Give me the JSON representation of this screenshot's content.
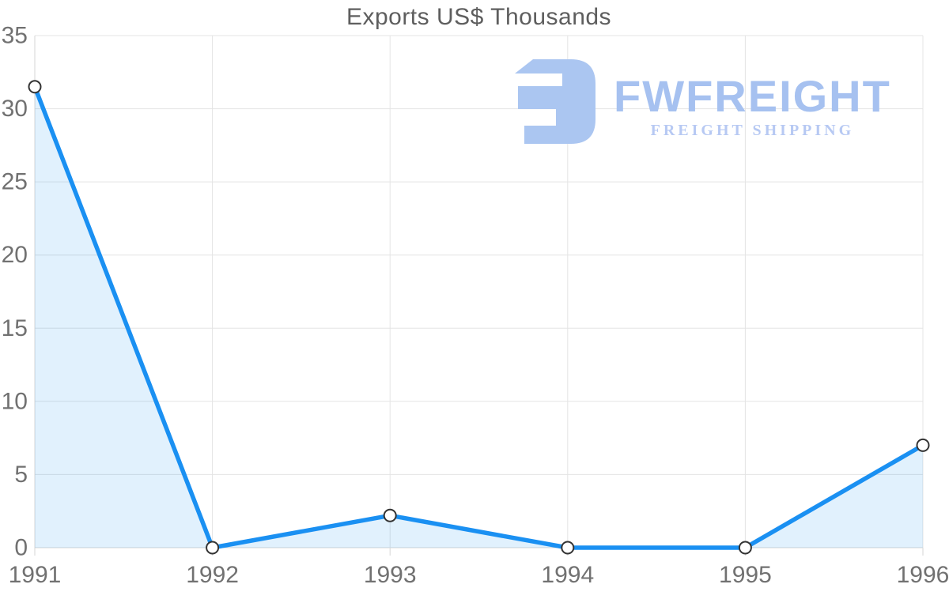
{
  "title": "Exports US$ Thousands",
  "watermark": {
    "wordmark": "FWFREIGHT",
    "tagline": "FREIGHT SHIPPING",
    "icon": "fwfreight-logo-icon",
    "wordmark_color": "#a6c1f0",
    "tagline_color": "#b7c9f3",
    "icon_color": "#abc6f1"
  },
  "chart_data": {
    "type": "area",
    "title": "Exports US$ Thousands",
    "categories": [
      "1991",
      "1992",
      "1993",
      "1994",
      "1995",
      "1996"
    ],
    "series": [
      {
        "name": "Exports US$ Thousands",
        "values": [
          31.5,
          0,
          2.2,
          0,
          0,
          7
        ]
      }
    ],
    "xlabel": "",
    "ylabel": "",
    "ylim": [
      0,
      35
    ],
    "yticks": [
      0,
      5,
      10,
      15,
      20,
      25,
      30,
      35
    ],
    "grid": true,
    "legend": false,
    "colors": {
      "line": "#1a90f2",
      "area_fill": "rgba(26,144,242,0.13)",
      "marker_fill": "#ffffff",
      "marker_stroke": "#333333",
      "gridline": "#e4e4e4",
      "axis_line": "#d6d6d6",
      "tick_label": "#717171",
      "title": "#5e5e5e"
    }
  }
}
